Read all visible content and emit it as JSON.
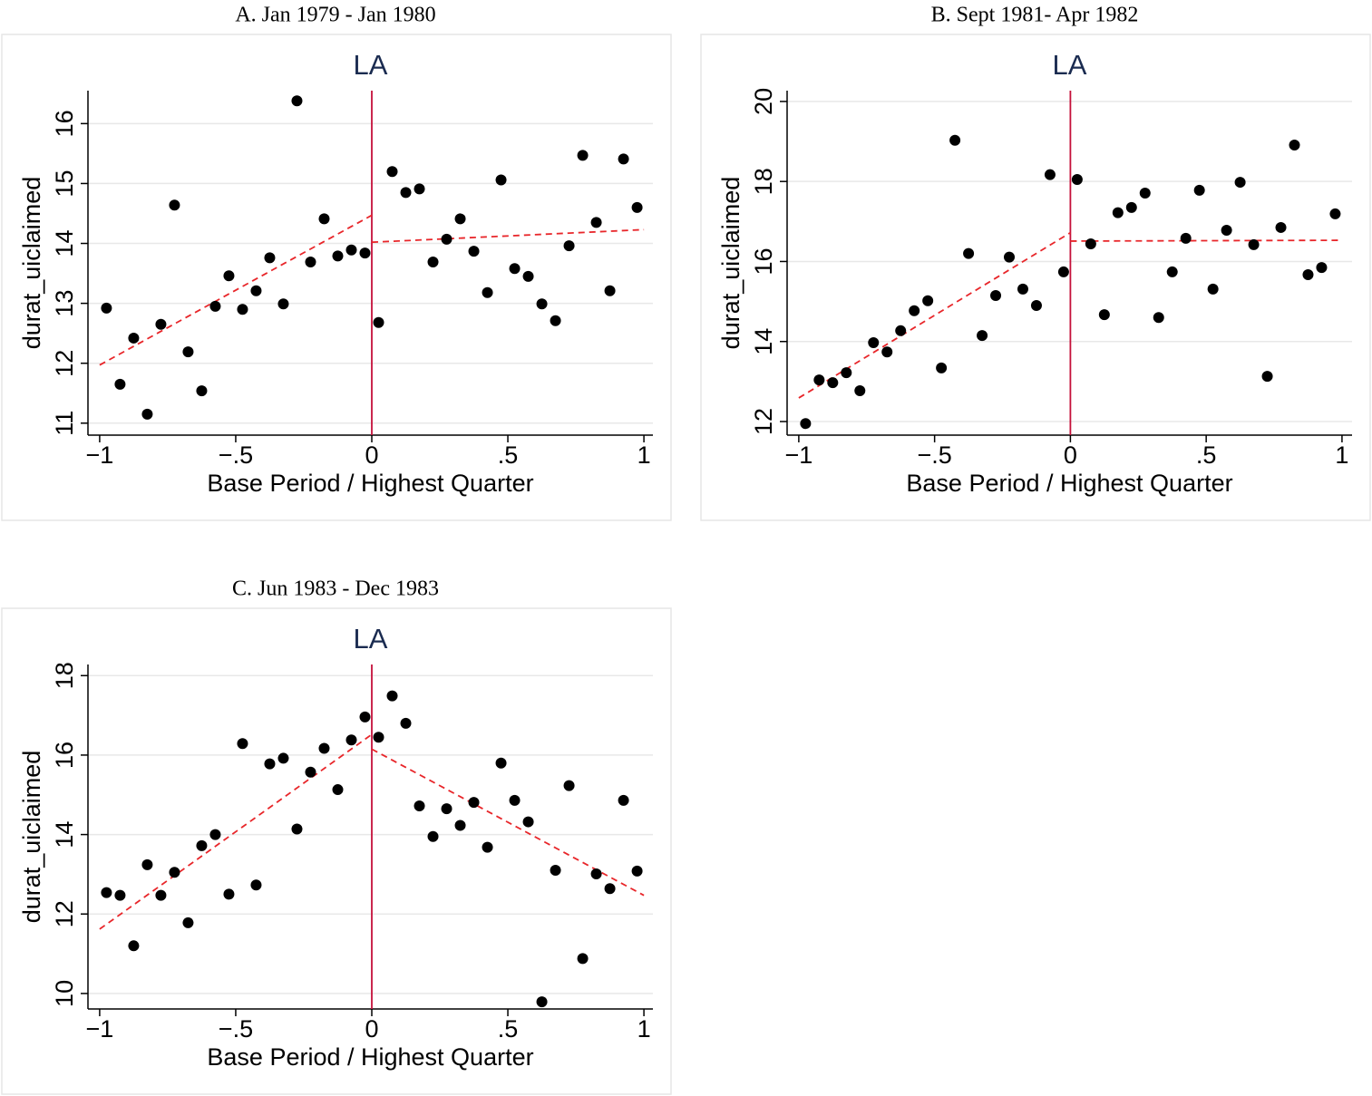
{
  "chart_data": [
    {
      "type": "scatter",
      "caption": "A. Jan 1979 - Jan 1980",
      "title": "LA",
      "xlabel": "Base Period / Highest Quarter",
      "ylabel": "durat_uiclaimed",
      "x": [
        -0.975,
        -0.925,
        -0.875,
        -0.825,
        -0.775,
        -0.725,
        -0.675,
        -0.625,
        -0.575,
        -0.525,
        -0.475,
        -0.425,
        -0.375,
        -0.325,
        -0.275,
        -0.225,
        -0.175,
        -0.125,
        -0.075,
        -0.025,
        0.025,
        0.075,
        0.125,
        0.175,
        0.225,
        0.275,
        0.325,
        0.375,
        0.425,
        0.475,
        0.525,
        0.575,
        0.625,
        0.675,
        0.725,
        0.775,
        0.825,
        0.875,
        0.925,
        0.975
      ],
      "values": [
        12.92,
        11.65,
        12.42,
        11.15,
        12.65,
        14.64,
        12.19,
        11.54,
        12.95,
        13.46,
        12.9,
        13.21,
        13.76,
        12.99,
        16.38,
        13.69,
        14.41,
        13.79,
        13.89,
        13.84,
        12.68,
        15.2,
        14.85,
        14.91,
        13.69,
        14.07,
        14.41,
        13.87,
        13.18,
        15.06,
        13.58,
        13.45,
        12.99,
        12.71,
        13.96,
        15.47,
        14.35,
        13.21,
        15.41,
        14.6
      ],
      "color": "#000000",
      "fit_lines": [
        {
          "x": [
            -1,
            0
          ],
          "values": [
            11.97,
            14.47
          ]
        },
        {
          "x": [
            0,
            1
          ],
          "values": [
            14.02,
            14.23
          ]
        }
      ],
      "fit_color": "#e8262a",
      "cutoff_x": 0,
      "cutoff_color": "#c4103a",
      "xlim": [
        -1.043,
        1.033
      ],
      "ylim": [
        10.8,
        16.55
      ],
      "xticks": [
        {
          "value": -1,
          "label": "−1"
        },
        {
          "value": -0.5,
          "label": "−.5"
        },
        0,
        {
          "value": 0.5,
          "label": ".5"
        },
        1
      ],
      "yticks": [
        11,
        12,
        13,
        14,
        15,
        16
      ],
      "grid": true
    },
    {
      "type": "scatter",
      "caption": "B. Sept 1981- Apr 1982",
      "title": "LA",
      "xlabel": "Base Period / Highest Quarter",
      "ylabel": "durat_uiclaimed",
      "x": [
        -0.975,
        -0.925,
        -0.875,
        -0.825,
        -0.775,
        -0.725,
        -0.675,
        -0.625,
        -0.575,
        -0.525,
        -0.475,
        -0.425,
        -0.375,
        -0.325,
        -0.275,
        -0.225,
        -0.175,
        -0.125,
        -0.075,
        -0.025,
        0.025,
        0.075,
        0.125,
        0.175,
        0.225,
        0.275,
        0.325,
        0.375,
        0.425,
        0.475,
        0.525,
        0.575,
        0.625,
        0.675,
        0.725,
        0.775,
        0.825,
        0.875,
        0.925,
        0.975
      ],
      "values": [
        11.95,
        13.04,
        12.97,
        13.22,
        12.77,
        13.97,
        13.74,
        14.27,
        14.77,
        15.02,
        13.34,
        19.03,
        16.2,
        14.15,
        15.15,
        16.11,
        15.31,
        14.9,
        18.17,
        15.74,
        18.05,
        16.44,
        14.67,
        17.22,
        17.35,
        17.71,
        14.6,
        15.74,
        16.58,
        17.78,
        15.31,
        16.78,
        17.98,
        16.42,
        13.13,
        16.85,
        18.91,
        15.67,
        15.85,
        17.19
      ],
      "color": "#000000",
      "fit_lines": [
        {
          "x": [
            -1,
            0
          ],
          "values": [
            12.59,
            16.72
          ]
        },
        {
          "x": [
            0,
            1
          ],
          "values": [
            16.51,
            16.53
          ]
        }
      ],
      "fit_color": "#e8262a",
      "cutoff_x": 0,
      "cutoff_color": "#c4103a",
      "xlim": [
        -1.043,
        1.037
      ],
      "ylim": [
        11.66,
        20.27
      ],
      "xticks": [
        {
          "value": -1,
          "label": "−1"
        },
        {
          "value": -0.5,
          "label": "−.5"
        },
        0,
        {
          "value": 0.5,
          "label": ".5"
        },
        1
      ],
      "yticks": [
        12,
        14,
        16,
        18,
        20
      ],
      "grid": true
    },
    {
      "type": "scatter",
      "caption": "C. Jun 1983 - Dec 1983",
      "title": "LA",
      "xlabel": "Base Period / Highest Quarter",
      "ylabel": "durat_uiclaimed",
      "x": [
        -0.975,
        -0.925,
        -0.875,
        -0.825,
        -0.775,
        -0.725,
        -0.675,
        -0.625,
        -0.575,
        -0.525,
        -0.475,
        -0.425,
        -0.375,
        -0.325,
        -0.275,
        -0.225,
        -0.175,
        -0.125,
        -0.075,
        -0.025,
        0.025,
        0.075,
        0.125,
        0.175,
        0.225,
        0.275,
        0.325,
        0.375,
        0.425,
        0.475,
        0.525,
        0.575,
        0.625,
        0.675,
        0.725,
        0.775,
        0.825,
        0.875,
        0.925,
        0.975
      ],
      "values": [
        12.54,
        12.47,
        11.2,
        13.24,
        12.47,
        13.05,
        11.78,
        13.72,
        14.0,
        12.5,
        16.29,
        12.73,
        15.78,
        15.92,
        14.14,
        15.57,
        16.17,
        15.13,
        16.38,
        16.96,
        16.45,
        17.49,
        16.8,
        14.72,
        13.95,
        14.65,
        14.23,
        14.81,
        13.68,
        15.8,
        14.86,
        14.32,
        9.79,
        13.1,
        15.23,
        10.88,
        13.01,
        12.64,
        14.86,
        13.08
      ],
      "color": "#000000",
      "fit_lines": [
        {
          "x": [
            -1,
            0
          ],
          "values": [
            11.62,
            16.52
          ]
        },
        {
          "x": [
            0,
            1
          ],
          "values": [
            16.15,
            12.47
          ]
        }
      ],
      "fit_color": "#e8262a",
      "cutoff_x": 0,
      "cutoff_color": "#c4103a",
      "xlim": [
        -1.043,
        1.033
      ],
      "ylim": [
        9.61,
        18.28
      ],
      "xticks": [
        {
          "value": -1,
          "label": "−1"
        },
        {
          "value": -0.5,
          "label": "−.5"
        },
        0,
        {
          "value": 0.5,
          "label": ".5"
        },
        1
      ],
      "yticks": [
        10,
        12,
        14,
        16,
        18
      ],
      "grid": true
    }
  ]
}
